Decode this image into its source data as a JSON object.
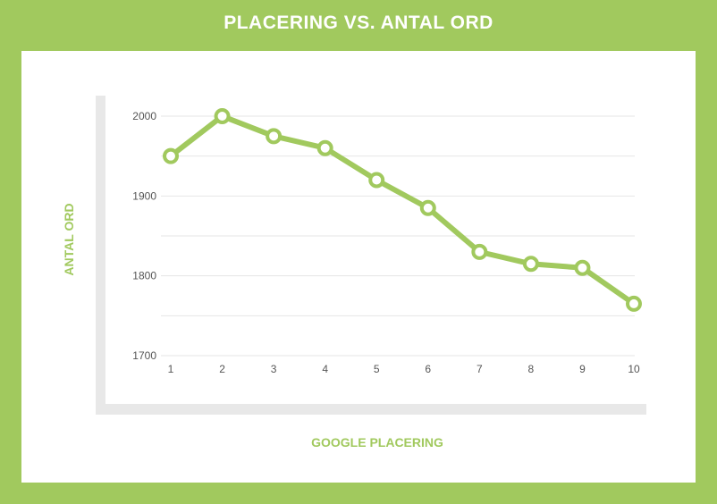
{
  "chart_data": {
    "type": "line",
    "title": "PLACERING VS. ANTAL ORD",
    "xlabel": "GOOGLE PLACERING",
    "ylabel": "ANTAL ORD",
    "x": [
      1,
      2,
      3,
      4,
      5,
      6,
      7,
      8,
      9,
      10
    ],
    "series": [
      {
        "values": [
          1950,
          2000,
          1975,
          1960,
          1920,
          1885,
          1830,
          1815,
          1810,
          1765
        ]
      }
    ],
    "ylim": [
      1700,
      2000
    ],
    "yticks": [
      1700,
      1800,
      1900,
      2000
    ],
    "grid": true,
    "colors": {
      "background": "#a1c95e",
      "line": "#a1c95e",
      "panel": "#ffffff",
      "axis_bar": "#e8e8e8",
      "grid": "#e6e6e6"
    }
  }
}
